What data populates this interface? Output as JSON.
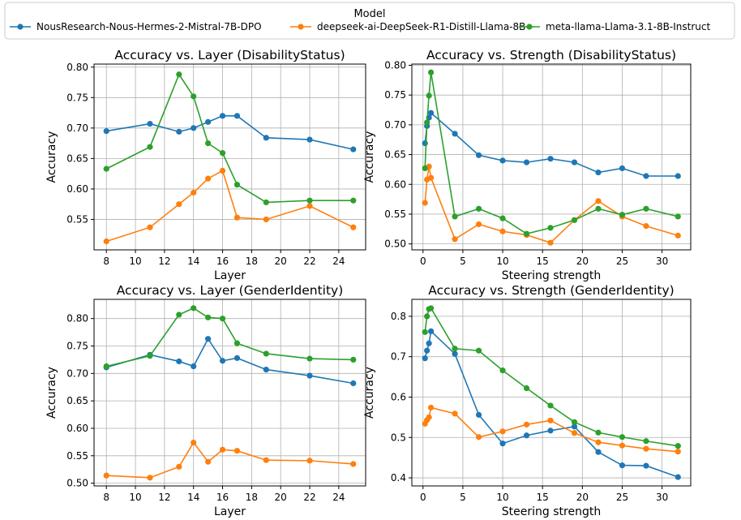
{
  "legend": {
    "title": "Model",
    "entries": [
      {
        "name": "NousResearch-Nous-Hermes-2-Mistral-7B-DPO",
        "color": "#1f77b4"
      },
      {
        "name": "deepseek-ai-DeepSeek-R1-Distill-Llama-8B",
        "color": "#ff7f0e"
      },
      {
        "name": "meta-llama-Llama-3.1-8B-Instruct",
        "color": "#2ca02c"
      }
    ]
  },
  "chart_data": [
    {
      "type": "line",
      "title": "Accuracy vs. Layer (DisabilityStatus)",
      "xlabel": "Layer",
      "ylabel": "Accuracy",
      "xlim": [
        7.15,
        25.85
      ],
      "ylim": [
        0.5,
        0.805
      ],
      "xticks": [
        8,
        10,
        12,
        14,
        16,
        18,
        20,
        22,
        24
      ],
      "yticks": [
        0.55,
        0.6,
        0.65,
        0.7,
        0.75,
        0.8
      ],
      "ytick_labels": [
        "0.55",
        "0.60",
        "0.65",
        "0.70",
        "0.75",
        "0.80"
      ],
      "grid": true,
      "x": [
        8,
        11,
        13,
        14,
        15,
        16,
        17,
        19,
        22,
        25
      ],
      "series": [
        {
          "name": "NousResearch-Nous-Hermes-2-Mistral-7B-DPO",
          "values": [
            0.695,
            0.707,
            0.694,
            0.7,
            0.71,
            0.72,
            0.72,
            0.684,
            0.681,
            0.665
          ]
        },
        {
          "name": "deepseek-ai-DeepSeek-R1-Distill-Llama-8B",
          "values": [
            0.514,
            0.537,
            0.575,
            0.594,
            0.617,
            0.63,
            0.553,
            0.55,
            0.572,
            0.537
          ]
        },
        {
          "name": "meta-llama-Llama-3.1-8B-Instruct",
          "values": [
            0.633,
            0.669,
            0.788,
            0.752,
            0.675,
            0.659,
            0.607,
            0.578,
            0.581,
            0.581
          ]
        }
      ]
    },
    {
      "type": "line",
      "title": "Accuracy vs. Strength (DisabilityStatus)",
      "xlabel": "Steering strength",
      "ylabel": "Accuracy",
      "xlim": [
        -1.4,
        33.6
      ],
      "ylim": [
        0.49,
        0.802
      ],
      "xticks": [
        0,
        5,
        10,
        15,
        20,
        25,
        30
      ],
      "yticks": [
        0.5,
        0.55,
        0.6,
        0.65,
        0.7,
        0.75,
        0.8
      ],
      "ytick_labels": [
        "0.50",
        "0.55",
        "0.60",
        "0.65",
        "0.70",
        "0.75",
        "0.80"
      ],
      "grid": true,
      "x": [
        0.25,
        0.5,
        0.75,
        1,
        4,
        7,
        10,
        13,
        16,
        19,
        22,
        25,
        28,
        32
      ],
      "series": [
        {
          "name": "NousResearch-Nous-Hermes-2-Mistral-7B-DPO",
          "values": [
            0.669,
            0.698,
            0.712,
            0.72,
            0.685,
            0.649,
            0.64,
            0.637,
            0.643,
            0.637,
            0.62,
            0.627,
            0.614,
            0.614
          ]
        },
        {
          "name": "deepseek-ai-DeepSeek-R1-Distill-Llama-8B",
          "values": [
            0.569,
            0.608,
            0.63,
            0.611,
            0.508,
            0.533,
            0.521,
            0.515,
            0.502,
            0.54,
            0.572,
            0.546,
            0.53,
            0.514
          ]
        },
        {
          "name": "meta-llama-Llama-3.1-8B-Instruct",
          "values": [
            0.627,
            0.704,
            0.749,
            0.788,
            0.546,
            0.559,
            0.543,
            0.517,
            0.527,
            0.54,
            0.559,
            0.549,
            0.559,
            0.546
          ]
        }
      ]
    },
    {
      "type": "line",
      "title": "Accuracy vs. Layer (GenderIdentity)",
      "xlabel": "Layer",
      "ylabel": "Accuracy",
      "xlim": [
        7.15,
        25.85
      ],
      "ylim": [
        0.495,
        0.835
      ],
      "xticks": [
        8,
        10,
        12,
        14,
        16,
        18,
        20,
        22,
        24
      ],
      "yticks": [
        0.5,
        0.55,
        0.6,
        0.65,
        0.7,
        0.75,
        0.8
      ],
      "ytick_labels": [
        "0.50",
        "0.55",
        "0.60",
        "0.65",
        "0.70",
        "0.75",
        "0.80"
      ],
      "grid": true,
      "x": [
        8,
        11,
        13,
        14,
        15,
        16,
        17,
        19,
        22,
        25
      ],
      "series": [
        {
          "name": "NousResearch-Nous-Hermes-2-Mistral-7B-DPO",
          "values": [
            0.711,
            0.734,
            0.722,
            0.713,
            0.763,
            0.723,
            0.728,
            0.707,
            0.696,
            0.682
          ]
        },
        {
          "name": "deepseek-ai-DeepSeek-R1-Distill-Llama-8B",
          "values": [
            0.514,
            0.51,
            0.53,
            0.574,
            0.539,
            0.561,
            0.559,
            0.542,
            0.541,
            0.535
          ]
        },
        {
          "name": "meta-llama-Llama-3.1-8B-Instruct",
          "values": [
            0.713,
            0.732,
            0.807,
            0.819,
            0.802,
            0.8,
            0.755,
            0.736,
            0.727,
            0.725
          ]
        }
      ]
    },
    {
      "type": "line",
      "title": "Accuracy vs. Strength (GenderIdentity)",
      "xlabel": "Steering strength",
      "ylabel": "Accuracy",
      "xlim": [
        -1.4,
        33.6
      ],
      "ylim": [
        0.38,
        0.842
      ],
      "xticks": [
        0,
        5,
        10,
        15,
        20,
        25,
        30
      ],
      "yticks": [
        0.4,
        0.5,
        0.6,
        0.7,
        0.8
      ],
      "ytick_labels": [
        "0.4",
        "0.5",
        "0.6",
        "0.7",
        "0.8"
      ],
      "grid": true,
      "x": [
        0.25,
        0.5,
        0.75,
        1,
        4,
        7,
        10,
        13,
        16,
        19,
        22,
        25,
        28,
        32
      ],
      "series": [
        {
          "name": "NousResearch-Nous-Hermes-2-Mistral-7B-DPO",
          "values": [
            0.696,
            0.715,
            0.733,
            0.763,
            0.707,
            0.556,
            0.485,
            0.505,
            0.517,
            0.527,
            0.464,
            0.431,
            0.43,
            0.402
          ]
        },
        {
          "name": "deepseek-ai-DeepSeek-R1-Distill-Llama-8B",
          "values": [
            0.534,
            0.543,
            0.55,
            0.574,
            0.559,
            0.501,
            0.515,
            0.532,
            0.542,
            0.511,
            0.488,
            0.48,
            0.472,
            0.465
          ]
        },
        {
          "name": "meta-llama-Llama-3.1-8B-Instruct",
          "values": [
            0.761,
            0.8,
            0.818,
            0.82,
            0.72,
            0.715,
            0.666,
            0.622,
            0.579,
            0.538,
            0.512,
            0.501,
            0.491,
            0.479
          ]
        }
      ]
    }
  ]
}
